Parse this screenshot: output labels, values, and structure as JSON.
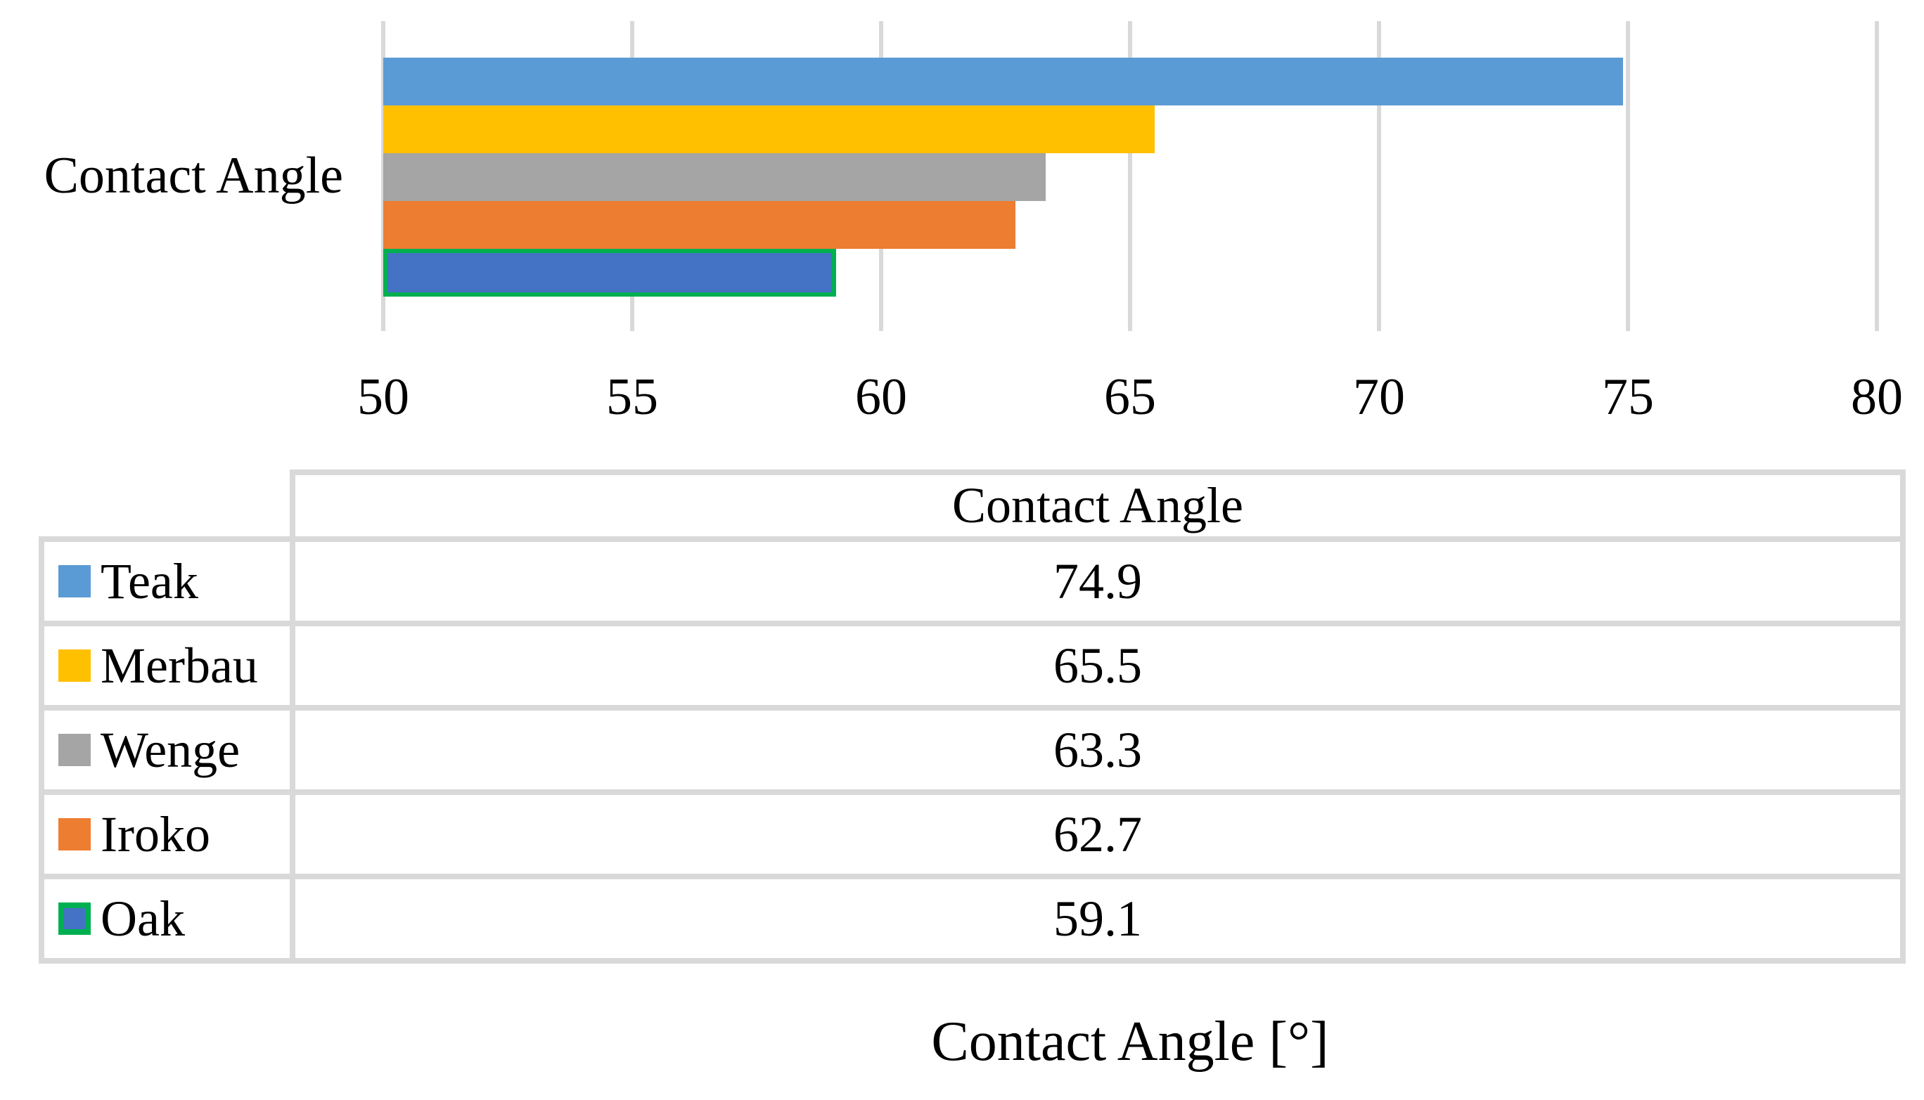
{
  "chart_data": {
    "type": "bar",
    "orientation": "horizontal",
    "category_label": "Contact Angle",
    "xlabel": "Contact Angle [°]",
    "xlim": [
      50,
      80
    ],
    "x_ticks": [
      "50",
      "55",
      "60",
      "65",
      "70",
      "75",
      "80"
    ],
    "grid": true,
    "gridline_color": "#D9D9D9",
    "legend_position": "table below chart",
    "series": [
      {
        "name": "Teak",
        "value": 74.9,
        "color": "#5B9BD5"
      },
      {
        "name": "Merbau",
        "value": 65.5,
        "color": "#FFC000"
      },
      {
        "name": "Wenge",
        "value": 63.3,
        "color": "#A5A5A5"
      },
      {
        "name": "Iroko",
        "value": 62.7,
        "color": "#ED7D31"
      },
      {
        "name": "Oak",
        "value": 59.1,
        "color": "#4472C4",
        "border_color": "#00B050"
      }
    ]
  },
  "table": {
    "value_column_header": "Contact Angle",
    "border_color": "#D9D9D9",
    "rows": [
      {
        "label": "Teak",
        "value": "74.9",
        "swatch_color": "#5B9BD5"
      },
      {
        "label": "Merbau",
        "value": "65.5",
        "swatch_color": "#FFC000"
      },
      {
        "label": "Wenge",
        "value": "63.3",
        "swatch_color": "#A5A5A5"
      },
      {
        "label": "Iroko",
        "value": "62.7",
        "swatch_color": "#ED7D31"
      },
      {
        "label": "Oak",
        "value": "59.1",
        "swatch_color": "#4472C4",
        "swatch_border_color": "#00B050"
      }
    ]
  }
}
